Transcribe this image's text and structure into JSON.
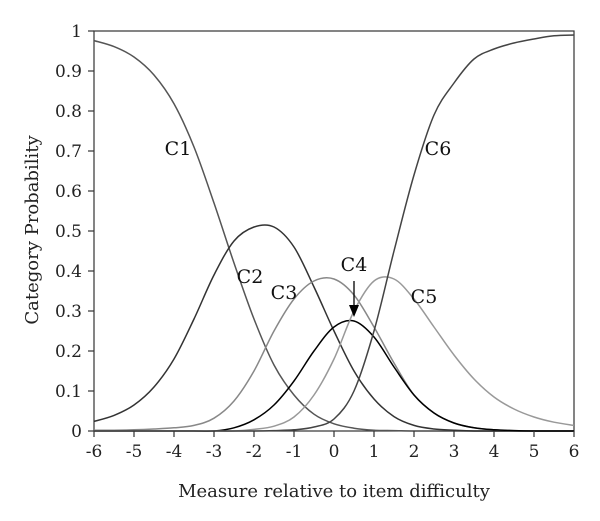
{
  "chart_data": {
    "type": "line",
    "xlabel": "Measure relative to item difficulty",
    "ylabel": "Category Probability",
    "xlim": [
      -6,
      6
    ],
    "ylim": [
      0,
      1
    ],
    "x_ticks": [
      -6,
      -5,
      -4,
      -3,
      -2,
      -1,
      0,
      1,
      2,
      3,
      4,
      5,
      6
    ],
    "y_ticks": [
      0,
      0.1,
      0.2,
      0.3,
      0.4,
      0.5,
      0.6,
      0.7,
      0.8,
      0.9,
      1
    ],
    "x_tick_labels": [
      "-6",
      "-5",
      "-4",
      "-3",
      "-2",
      "-1",
      "0",
      "1",
      "2",
      "3",
      "4",
      "5",
      "6"
    ],
    "y_tick_labels": [
      "0",
      "0.1",
      "0.2",
      "0.3",
      "0.4",
      "0.5",
      "0.6",
      "0.7",
      "0.8",
      "0.9",
      "1"
    ],
    "x": [
      -6,
      -5.5,
      -5,
      -4.5,
      -4,
      -3.5,
      -3,
      -2.5,
      -2,
      -1.5,
      -1,
      -0.5,
      0,
      0.5,
      1,
      1.5,
      2,
      2.5,
      3,
      3.5,
      4,
      4.5,
      5,
      5.5,
      6
    ],
    "series": [
      {
        "name": "C1",
        "color": "#555555",
        "label_pos": [
          -3.9,
          0.69
        ],
        "values": [
          0.976,
          0.961,
          0.935,
          0.89,
          0.818,
          0.71,
          0.57,
          0.42,
          0.28,
          0.165,
          0.09,
          0.042,
          0.018,
          0.007,
          0.002,
          0.001,
          0,
          0,
          0,
          0,
          0,
          0,
          0,
          0,
          0
        ]
      },
      {
        "name": "C2",
        "color": "#333333",
        "label_pos": [
          -2.1,
          0.37
        ],
        "values": [
          0.024,
          0.039,
          0.065,
          0.11,
          0.18,
          0.28,
          0.39,
          0.475,
          0.51,
          0.51,
          0.46,
          0.36,
          0.25,
          0.15,
          0.08,
          0.036,
          0.014,
          0.005,
          0.002,
          0,
          0,
          0,
          0,
          0,
          0
        ]
      },
      {
        "name": "C3",
        "color": "#888888",
        "label_pos": [
          -1.25,
          0.33
        ],
        "values": [
          0.002,
          0.002,
          0.003,
          0.005,
          0.008,
          0.014,
          0.032,
          0.075,
          0.15,
          0.25,
          0.33,
          0.375,
          0.38,
          0.34,
          0.26,
          0.17,
          0.09,
          0.045,
          0.02,
          0.008,
          0.003,
          0.001,
          0,
          0,
          0
        ]
      },
      {
        "name": "C4",
        "color": "#000000",
        "label_pos": [
          0.5,
          0.4
        ],
        "values": [
          0,
          0,
          0,
          0,
          0,
          0,
          0,
          0.008,
          0.028,
          0.065,
          0.125,
          0.2,
          0.26,
          0.275,
          0.235,
          0.16,
          0.09,
          0.045,
          0.02,
          0.008,
          0.003,
          0.001,
          0,
          0,
          0
        ]
      },
      {
        "name": "C5",
        "color": "#999999",
        "label_pos": [
          2.25,
          0.32
        ],
        "values": [
          0,
          0,
          0,
          0,
          0,
          0,
          0,
          0,
          0.004,
          0.012,
          0.035,
          0.09,
          0.18,
          0.3,
          0.375,
          0.38,
          0.33,
          0.26,
          0.19,
          0.13,
          0.085,
          0.055,
          0.035,
          0.022,
          0.014
        ]
      },
      {
        "name": "C6",
        "color": "#444444",
        "label_pos": [
          2.6,
          0.69
        ],
        "values": [
          0,
          0,
          0,
          0,
          0,
          0,
          0,
          0,
          0,
          0.001,
          0.003,
          0.01,
          0.03,
          0.1,
          0.25,
          0.45,
          0.64,
          0.79,
          0.87,
          0.93,
          0.955,
          0.97,
          0.98,
          0.988,
          0.99
        ]
      }
    ],
    "annotation": {
      "text": "C4",
      "arrow_to": [
        0.5,
        0.28
      ]
    },
    "grid": false,
    "legend": "none"
  }
}
